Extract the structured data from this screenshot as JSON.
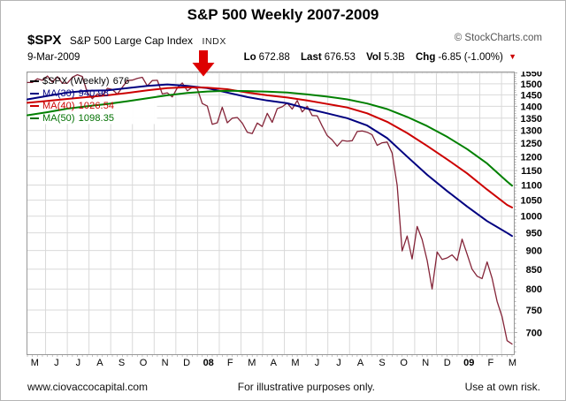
{
  "header": {
    "title": "S&P 500 Weekly 2007-2009",
    "symbol": "$SPX",
    "symbol_desc": "S&P 500 Large Cap Index",
    "exchange": "INDX",
    "copyright": "© StockCharts.com",
    "date": "9-Mar-2009",
    "quote": {
      "lo_label": "Lo",
      "lo": "672.88",
      "last_label": "Last",
      "last": "676.53",
      "vol_label": "Vol",
      "vol": "5.3B",
      "chg_label": "Chg",
      "chg": "-6.85 (-1.00%)",
      "chg_arrow": "▼"
    }
  },
  "legend": [
    {
      "label": "$SPX (Weekly)",
      "value": "676",
      "color": "#000000",
      "dash": "#000000"
    },
    {
      "label": "MA(30)",
      "value": "940.98",
      "color": "#000080",
      "dash": "#000080"
    },
    {
      "label": "MA(40)",
      "value": "1026.54",
      "color": "#cc0000",
      "dash": "#cc0000"
    },
    {
      "label": "MA(50)",
      "value": "1098.35",
      "color": "#007000",
      "dash": "#007000"
    }
  ],
  "annotation": {
    "arrow_color": "#dd0000"
  },
  "footer": {
    "left": "www.ciovaccocapital.com",
    "center": "For illustrative purposes only.",
    "right": "Use at own risk."
  },
  "chart_data": {
    "type": "line",
    "title": "S&P 500 Weekly 2007-2009",
    "x_axis": {
      "labels": [
        "M",
        "J",
        "J",
        "A",
        "S",
        "O",
        "N",
        "D",
        "08",
        "F",
        "M",
        "A",
        "M",
        "J",
        "J",
        "A",
        "S",
        "O",
        "N",
        "D",
        "09",
        "F",
        "M"
      ],
      "bold": [
        "08",
        "09"
      ]
    },
    "y_axis": {
      "scale": "log",
      "min": 657,
      "max": 1553,
      "ticks": [
        700,
        750,
        800,
        850,
        900,
        950,
        1000,
        1050,
        1100,
        1150,
        1200,
        1250,
        1300,
        1350,
        1400,
        1450,
        1500,
        1550
      ]
    },
    "grid": true,
    "colors": {
      "grid": "#d9d9d9",
      "border": "#999999",
      "tick": "#aaaaaa"
    },
    "series": [
      {
        "name": "$SPX (Weekly)",
        "color": "#842438",
        "width": 1.3,
        "step": 1,
        "values": [
          1506,
          1506,
          1523,
          1516,
          1536,
          1508,
          1533,
          1503,
          1503,
          1530,
          1542,
          1534,
          1459,
          1433,
          1454,
          1446,
          1479,
          1474,
          1453,
          1484,
          1515,
          1517,
          1525,
          1530,
          1490,
          1515,
          1516,
          1454,
          1459,
          1441,
          1481,
          1504,
          1468,
          1484,
          1478,
          1412,
          1401,
          1325,
          1331,
          1396,
          1331,
          1350,
          1353,
          1330,
          1293,
          1288,
          1330,
          1316,
          1370,
          1333,
          1390,
          1398,
          1414,
          1388,
          1425,
          1376,
          1400,
          1361,
          1360,
          1318,
          1280,
          1263,
          1239,
          1261,
          1258,
          1260,
          1296,
          1298,
          1293,
          1283,
          1242,
          1252,
          1255,
          1213,
          1099,
          899,
          941,
          877,
          969,
          931,
          873,
          800,
          896,
          876,
          880,
          888,
          873,
          932,
          890,
          850,
          832,
          826,
          869,
          827,
          770,
          735,
          683,
          676
        ]
      },
      {
        "name": "MA(30)",
        "color": "#000080",
        "width": 2,
        "step": 4,
        "values": [
          1430,
          1445,
          1460,
          1468,
          1470,
          1480,
          1490,
          1497,
          1490,
          1480,
          1460,
          1440,
          1425,
          1413,
          1390,
          1370,
          1350,
          1320,
          1270,
          1200,
          1135,
          1080,
          1030,
          985,
          950,
          941
        ]
      },
      {
        "name": "MA(40)",
        "color": "#cc0000",
        "width": 2,
        "step": 4,
        "values": [
          1415,
          1423,
          1432,
          1440,
          1448,
          1458,
          1470,
          1480,
          1484,
          1482,
          1475,
          1460,
          1448,
          1438,
          1425,
          1410,
          1395,
          1370,
          1335,
          1290,
          1240,
          1190,
          1140,
          1085,
          1035,
          1027
        ]
      },
      {
        "name": "MA(50)",
        "color": "#008000",
        "width": 2,
        "step": 4,
        "values": [
          1362,
          1375,
          1390,
          1400,
          1410,
          1422,
          1435,
          1448,
          1458,
          1465,
          1468,
          1467,
          1464,
          1460,
          1452,
          1442,
          1430,
          1412,
          1388,
          1355,
          1318,
          1275,
          1228,
          1175,
          1112,
          1098
        ]
      }
    ]
  }
}
